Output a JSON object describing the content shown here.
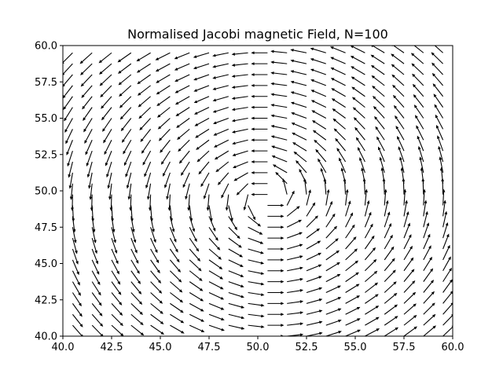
{
  "chart_data": {
    "type": "quiver",
    "title": "Normalised Jacobi magnetic Field, N=100",
    "xlabel": "",
    "ylabel": "",
    "xlim": [
      40.0,
      60.0
    ],
    "ylim": [
      40.0,
      60.0
    ],
    "xticks": [
      "40.0",
      "42.5",
      "45.0",
      "47.5",
      "50.0",
      "52.5",
      "55.0",
      "57.5",
      "60.0"
    ],
    "yticks": [
      "40.0",
      "42.5",
      "45.0",
      "47.5",
      "50.0",
      "52.5",
      "55.0",
      "57.5",
      "60.0"
    ],
    "grid": false,
    "field": {
      "description_kind": "unit vectors circulating counter-clockwise around a center",
      "center": [
        50.5,
        49.5
      ],
      "x_start": 40.5,
      "x_step": 1.0,
      "x_count": 20,
      "y_start": 40.0,
      "y_step": 0.75,
      "y_count": 27,
      "arrow_length": 0.85,
      "color": "#000000"
    }
  }
}
